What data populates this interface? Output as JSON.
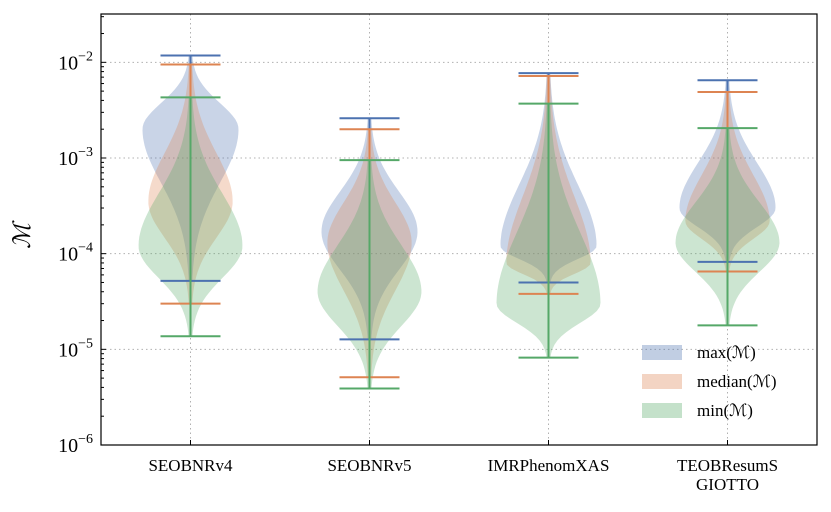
{
  "chart_data": {
    "type": "violin",
    "ylabel": "ℳ",
    "categories": [
      "SEOBNRv4",
      "SEOBNRv5",
      "IMRPhenomXAS",
      "TEOBResumS\nGIOTTO"
    ],
    "log_y": true,
    "grid": true,
    "legend": "lower right",
    "ylim": [
      1e-06,
      0.032
    ],
    "yticks": [
      {
        "value": 1e-06,
        "label": "10−6"
      },
      {
        "value": 1e-05,
        "label": "10−5"
      },
      {
        "value": 0.0001,
        "label": "10−4"
      },
      {
        "value": 0.001,
        "label": "10−3"
      },
      {
        "value": 0.01,
        "label": "10−2"
      }
    ],
    "series": [
      {
        "name": "max(ℳ)",
        "color": "#4c72b0",
        "min": [
          5.2e-05,
          1.27e-05,
          5e-05,
          8.2e-05
        ],
        "peak": [
          0.002,
          0.00017,
          0.00012,
          0.0003
        ],
        "max": [
          0.0118,
          0.0026,
          0.0077,
          0.0065
        ]
      },
      {
        "name": "median(ℳ)",
        "color": "#dd8452",
        "min": [
          3e-05,
          5.1e-06,
          3.8e-05,
          6.5e-05
        ],
        "peak": [
          0.00035,
          0.00013,
          8e-05,
          0.00022
        ],
        "max": [
          0.0095,
          0.002,
          0.0072,
          0.0049
        ]
      },
      {
        "name": "min(ℳ)",
        "color": "#55a868",
        "min": [
          1.37e-05,
          3.9e-06,
          8.2e-06,
          1.78e-05
        ],
        "peak": [
          0.00012,
          4e-05,
          3e-05,
          0.00013
        ],
        "max": [
          0.0043,
          0.00095,
          0.0037,
          0.00205
        ]
      }
    ]
  }
}
